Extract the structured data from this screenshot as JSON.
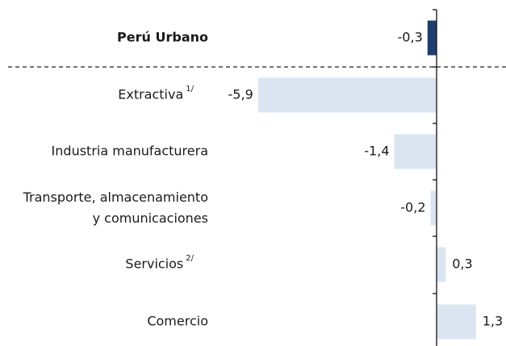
{
  "chart_data": {
    "type": "bar",
    "orientation": "horizontal",
    "categories": [
      "Perú Urbano",
      "Extractiva",
      "Industria manufacturera",
      "Transporte, almacenamiento\ny comunicaciones",
      "Servicios",
      "Comercio"
    ],
    "category_notes": [
      null,
      "1/",
      null,
      null,
      "2/",
      null
    ],
    "values": [
      -0.3,
      -5.9,
      -1.4,
      -0.2,
      0.3,
      1.3
    ],
    "value_labels": [
      "-0,3",
      "-5,9",
      "-1,4",
      "-0,2",
      "0,3",
      "1,3"
    ],
    "colors": [
      "#1f3e6d",
      "#dbe5f2",
      "#dbe5f2",
      "#dbe5f2",
      "#dbe5f2",
      "#dbe5f2"
    ]
  }
}
